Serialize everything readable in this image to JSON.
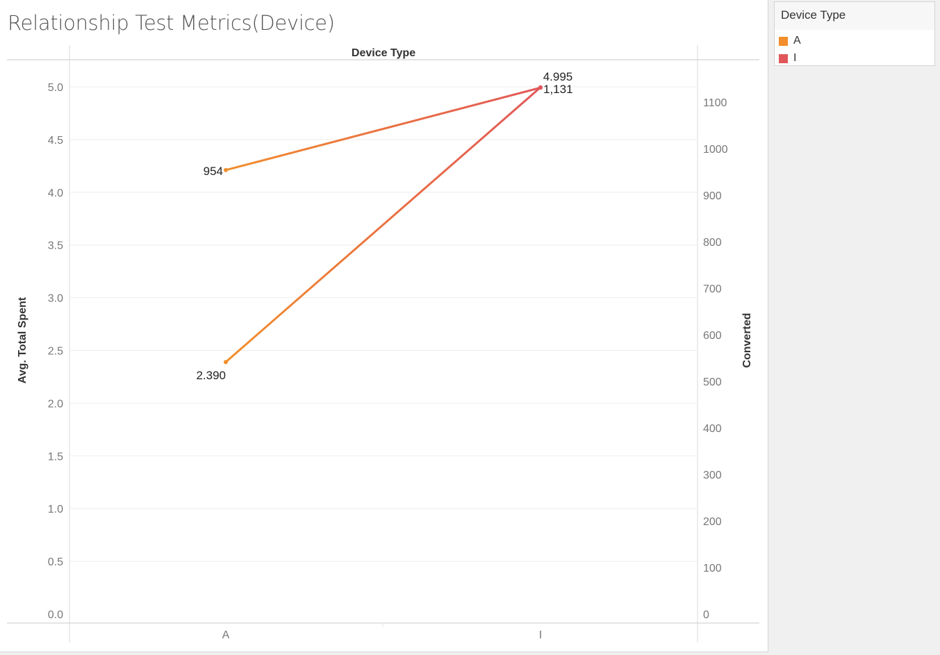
{
  "title": "Relationship Test Metrics(Device)",
  "legend": {
    "title": "Device Type",
    "items": [
      {
        "label": "A",
        "color": "#f28e2b"
      },
      {
        "label": "I",
        "color": "#e15759"
      }
    ]
  },
  "chart_data": {
    "type": "line",
    "column_header": "Device Type",
    "categories": [
      "A",
      "I"
    ],
    "left_axis": {
      "label": "Avg. Total Spent",
      "range": [
        0,
        5.25
      ],
      "ticks": [
        "0.0",
        "0.5",
        "1.0",
        "1.5",
        "2.0",
        "2.5",
        "3.0",
        "3.5",
        "4.0",
        "4.5",
        "5.0"
      ]
    },
    "right_axis": {
      "label": "Converted",
      "range": [
        0,
        1160
      ],
      "ticks": [
        "0",
        "100",
        "200",
        "300",
        "400",
        "500",
        "600",
        "700",
        "800",
        "900",
        "1000",
        "1100"
      ]
    },
    "series": [
      {
        "name": "Avg. Total Spent",
        "axis": "left",
        "values": [
          2.39,
          4.995
        ],
        "labels": [
          "2.390",
          "4.995"
        ]
      },
      {
        "name": "Converted",
        "axis": "right",
        "values": [
          954,
          1131
        ],
        "labels": [
          "954",
          "1,131"
        ]
      }
    ],
    "grid": true
  }
}
